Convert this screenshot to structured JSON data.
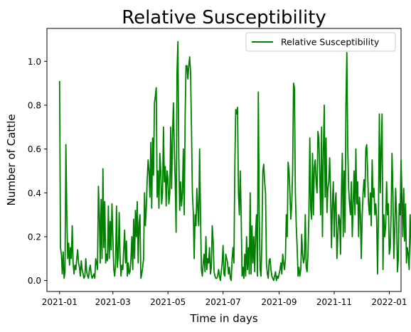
{
  "chart_data": {
    "type": "line",
    "title": "Relative Susceptibility",
    "xlabel": "Time in days",
    "ylabel": "Number of Cattle",
    "x_start": "2021-01-01",
    "x_ticks": [
      "2021-01",
      "2021-03",
      "2021-05",
      "2021-07",
      "2021-09",
      "2021-11",
      "2022-01"
    ],
    "y_ticks": [
      "0.0",
      "0.2",
      "0.4",
      "0.6",
      "0.8",
      "1.0"
    ],
    "xlim": [
      "2020-12-18",
      "2022-01-14"
    ],
    "ylim": [
      -0.05,
      1.15
    ],
    "grid": false,
    "legend_position": "upper right",
    "series": [
      {
        "name": "Relative Susceptibility",
        "color": "#008000",
        "values": [
          0.91,
          0.15,
          0.12,
          0.03,
          0.13,
          0.01,
          0.04,
          0.62,
          0.3,
          0.1,
          0.17,
          0.07,
          0.15,
          0.1,
          0.25,
          0.08,
          0.03,
          0.07,
          0.05,
          0.1,
          0.14,
          0.08,
          0.06,
          0.02,
          0.09,
          0.05,
          0.03,
          0.01,
          0.02,
          0.1,
          0.04,
          0.02,
          0.01,
          0.05,
          0.07,
          0.03,
          0.01,
          0.02,
          0.03,
          0.01,
          0.1,
          0.08,
          0.05,
          0.43,
          0.31,
          0.08,
          0.37,
          0.1,
          0.51,
          0.15,
          0.36,
          0.08,
          0.12,
          0.09,
          0.34,
          0.1,
          0.27,
          0.14,
          0.35,
          0.2,
          0.05,
          0.02,
          0.08,
          0.34,
          0.06,
          0.12,
          0.31,
          0.1,
          0.02,
          0.07,
          0.05,
          0.14,
          0.23,
          0.08,
          0.18,
          0.02,
          0.08,
          0.03,
          0.04,
          0.1,
          0.2,
          0.05,
          0.28,
          0.1,
          0.32,
          0.2,
          0.36,
          0.08,
          0.26,
          0.3,
          0.01,
          0.03,
          0.06,
          0.1,
          0.4,
          0.25,
          0.33,
          0.46,
          0.55,
          0.5,
          0.38,
          0.63,
          0.33,
          0.65,
          0.48,
          0.81,
          0.84,
          0.88,
          0.38,
          0.5,
          0.33,
          0.58,
          0.5,
          0.35,
          0.4,
          0.7,
          0.45,
          0.52,
          0.34,
          0.5,
          0.46,
          0.35,
          0.4,
          0.7,
          0.42,
          0.66,
          0.81,
          0.6,
          0.45,
          0.22,
          0.95,
          1.09,
          0.55,
          0.32,
          0.45,
          0.34,
          0.4,
          0.6,
          0.3,
          0.75,
          0.98,
          0.98,
          0.92,
          0.98,
          1.02,
          0.95,
          0.7,
          0.4,
          0.31,
          0.1,
          0.3,
          0.25,
          0.42,
          0.33,
          0.25,
          0.6,
          0.3,
          0.05,
          0.02,
          0.08,
          0.12,
          0.04,
          0.2,
          0.05,
          0.1,
          0.08,
          0.15,
          0.03,
          0.06,
          0.25,
          0.18,
          0.04,
          0.02,
          0.01,
          0.01,
          0.02,
          0.05,
          0.02,
          0.0,
          0.04,
          0.08,
          0.16,
          0.03,
          0.02,
          0.12,
          0.1,
          0.08,
          0.03,
          0.06,
          0.01,
          0.0,
          0.1,
          0.15,
          0.08,
          0.52,
          0.78,
          0.76,
          0.79,
          0.4,
          0.3,
          0.5,
          0.3,
          0.02,
          0.06,
          0.01,
          0.12,
          0.02,
          0.2,
          0.05,
          0.15,
          0.03,
          0.4,
          0.03,
          0.25,
          0.08,
          0.2,
          0.04,
          0.22,
          0.3,
          0.02,
          0.86,
          0.3,
          0.05,
          0.02,
          0.2,
          0.5,
          0.53,
          0.45,
          0.4,
          0.08,
          0.03,
          0.01,
          0.09,
          0.1,
          0.05,
          0.02,
          0.01,
          0.0,
          0.02,
          0.04,
          0.0,
          0.02,
          0.01,
          0.03,
          0.05,
          0.08,
          0.03,
          0.12,
          0.08,
          0.05,
          0.1,
          0.3,
          0.2,
          0.54,
          0.5,
          0.4,
          0.28,
          0.35,
          0.5,
          0.9,
          0.88,
          0.4,
          0.25,
          0.15,
          0.02,
          0.06,
          0.02,
          0.05,
          0.21,
          0.12,
          0.08,
          0.1,
          0.3,
          0.06,
          0.04,
          0.12,
          0.3,
          0.65,
          0.33,
          0.28,
          0.58,
          0.3,
          0.52,
          0.55,
          0.45,
          0.4,
          0.68,
          0.65,
          0.48,
          0.3,
          0.7,
          0.2,
          0.58,
          0.8,
          0.38,
          0.65,
          0.31,
          0.42,
          0.45,
          0.56,
          0.4,
          0.15,
          0.35,
          0.45,
          0.2,
          0.35,
          0.4,
          0.1,
          0.2,
          0.3,
          0.28,
          0.12,
          0.4,
          0.58,
          0.2,
          0.5,
          0.22,
          0.8,
          1.04,
          0.6,
          0.42,
          0.35,
          0.3,
          0.45,
          0.2,
          0.35,
          0.5,
          0.3,
          0.6,
          0.35,
          0.45,
          0.2,
          0.38,
          0.3,
          0.1,
          0.3,
          0.4,
          0.46,
          0.38,
          0.6,
          0.62,
          0.5,
          0.35,
          0.3,
          0.4,
          0.25,
          0.55,
          0.38,
          0.42,
          0.3,
          0.35,
          0.28,
          0.03,
          0.3,
          0.76,
          0.4,
          0.6,
          0.76,
          0.05,
          0.3,
          0.2,
          0.25,
          0.45,
          0.3,
          0.35,
          0.12,
          0.15,
          0.3,
          0.58,
          0.4,
          0.1,
          0.22,
          0.42,
          0.3,
          0.04,
          0.1,
          0.35,
          0.3,
          0.55,
          0.4,
          0.2,
          0.42,
          0.18,
          0.35,
          0.08,
          0.15,
          0.12,
          0.05,
          0.3,
          0.2,
          0.05,
          0.1,
          0.25,
          0.12,
          0.22,
          0.08,
          0.1,
          0.18,
          0.05,
          0.12,
          0.2,
          0.1,
          0.15,
          0.22,
          0.08,
          0.18,
          0.25,
          0.15,
          0.2,
          0.15,
          0.22,
          0.18,
          0.02,
          0.1,
          0.05,
          0.15,
          0.2,
          0.22,
          0.3,
          0.45,
          0.52,
          0.51,
          0.5,
          0.38,
          0.25,
          0.1,
          0.05,
          0.02,
          0.15,
          0.05,
          0.12,
          0.03,
          0.06,
          0.1,
          0.02,
          0.07,
          0.05,
          0.1,
          0.06,
          0.03,
          0.08,
          0.15,
          0.12,
          0.04,
          0.18,
          0.07,
          0.03,
          0.01,
          0.02,
          0.08,
          0.05,
          0.06,
          0.1,
          0.04,
          0.08,
          0.06,
          0.04,
          0.1,
          0.05,
          0.04,
          0.06,
          0.08,
          0.02,
          0.04,
          0.16,
          0.12,
          0.04,
          0.08,
          0.11,
          0.1,
          0.06,
          0.03,
          0.08,
          0.03,
          0.01,
          0.04,
          0.17,
          0.1,
          0.02,
          0.12,
          0.06,
          0.08,
          0.15,
          0.26,
          0.12,
          0.2,
          0.31,
          0.3,
          0.31,
          0.3,
          0.29,
          0.3,
          0.05,
          0.1,
          0.08,
          0.1,
          0.12,
          0.1,
          0.28
        ]
      }
    ]
  }
}
